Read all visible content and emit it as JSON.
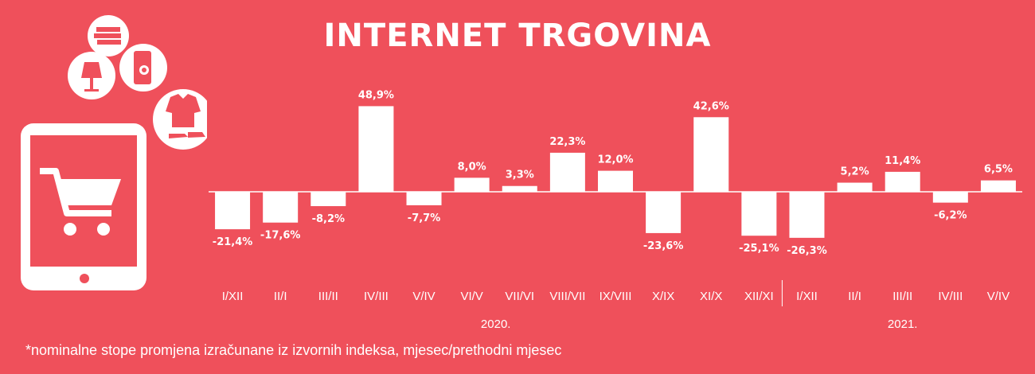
{
  "title": "INTERNET TRGOVINA",
  "footnote": "*nominalne stope promjena izračunane iz izvornih indeksa, mjesec/prethodni mjesec",
  "colors": {
    "background": "#ef505b",
    "bars": "#ffffff",
    "text": "#ffffff"
  },
  "icons": [
    "books-icon",
    "lamp-icon",
    "phone-icon",
    "clothes-icon",
    "tablet-cart-icon"
  ],
  "chart_data": {
    "type": "bar",
    "title": "INTERNET TRGOVINA",
    "xlabel": "",
    "ylabel": "",
    "categories": [
      "I/XII",
      "II/I",
      "III/II",
      "IV/III",
      "V/IV",
      "VI/V",
      "VII/VI",
      "VIII/VII",
      "IX/VIII",
      "X/IX",
      "XI/X",
      "XII/XI",
      "I/XII",
      "II/I",
      "III/II",
      "IV/III",
      "V/IV"
    ],
    "values": [
      -21.4,
      -17.6,
      -8.2,
      48.9,
      -7.7,
      8.0,
      3.3,
      22.3,
      12.0,
      -23.6,
      42.6,
      -25.1,
      -26.3,
      5.2,
      11.4,
      -6.2,
      6.5
    ],
    "data_labels": [
      "-21,4%",
      "-17,6%",
      "-8,2%",
      "48,9%",
      "-7,7%",
      "8,0%",
      "3,3%",
      "22,3%",
      "12,0%",
      "-23,6%",
      "42,6%",
      "-25,1%",
      "-26,3%",
      "5,2%",
      "11,4%",
      "-6,2%",
      "6,5%"
    ],
    "groups": [
      {
        "label": "2020.",
        "start": 0,
        "end": 11
      },
      {
        "label": "2021.",
        "start": 12,
        "end": 16
      }
    ],
    "ylim": [
      -30,
      50
    ],
    "grid": false,
    "legend": "none"
  }
}
